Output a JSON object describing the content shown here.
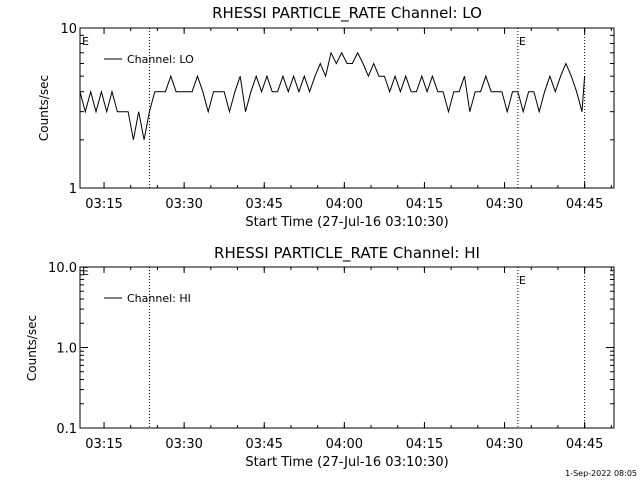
{
  "chart_data": [
    {
      "type": "line",
      "title": "RHESSI PARTICLE_RATE Channel: LO",
      "xlabel": "Start Time (27-Jul-16 03:10:30)",
      "ylabel": "Counts/sec",
      "yscale": "log",
      "ylim": [
        1,
        10
      ],
      "xlim": [
        "03:10:30",
        "04:50:30"
      ],
      "x_ticks": [
        "03:15",
        "03:30",
        "03:45",
        "04:00",
        "04:15",
        "04:30",
        "04:45"
      ],
      "y_ticks": [
        "1",
        "10"
      ],
      "legend": "top-left",
      "grid": false,
      "vertical_markers": [
        {
          "time": "03:23:30",
          "label": ""
        },
        {
          "time": "04:32:30",
          "label": "E"
        },
        {
          "time": "04:45:00",
          "label": ""
        }
      ],
      "edge_label": "E",
      "series": [
        {
          "name": "Channel: LO",
          "color": "#000000",
          "points": [
            [
              "03:10:30",
              4
            ],
            [
              "03:11:30",
              3
            ],
            [
              "03:12:30",
              4
            ],
            [
              "03:13:30",
              3
            ],
            [
              "03:14:30",
              4
            ],
            [
              "03:15:30",
              3
            ],
            [
              "03:16:30",
              4
            ],
            [
              "03:17:30",
              3
            ],
            [
              "03:18:30",
              3
            ],
            [
              "03:19:30",
              3
            ],
            [
              "03:20:30",
              2
            ],
            [
              "03:21:30",
              3
            ],
            [
              "03:22:30",
              2
            ],
            [
              "03:23:30",
              3
            ],
            [
              "03:24:30",
              4
            ],
            [
              "03:25:30",
              4
            ],
            [
              "03:26:30",
              4
            ],
            [
              "03:27:30",
              5
            ],
            [
              "03:28:30",
              4
            ],
            [
              "03:29:30",
              4
            ],
            [
              "03:30:30",
              4
            ],
            [
              "03:31:30",
              4
            ],
            [
              "03:32:30",
              5
            ],
            [
              "03:33:30",
              4
            ],
            [
              "03:34:30",
              3
            ],
            [
              "03:35:30",
              4
            ],
            [
              "03:36:30",
              4
            ],
            [
              "03:37:30",
              4
            ],
            [
              "03:38:30",
              3
            ],
            [
              "03:39:30",
              4
            ],
            [
              "03:40:30",
              5
            ],
            [
              "03:41:30",
              3
            ],
            [
              "03:42:30",
              4
            ],
            [
              "03:43:30",
              5
            ],
            [
              "03:44:30",
              4
            ],
            [
              "03:45:30",
              5
            ],
            [
              "03:46:30",
              4
            ],
            [
              "03:47:30",
              4
            ],
            [
              "03:48:30",
              5
            ],
            [
              "03:49:30",
              4
            ],
            [
              "03:50:30",
              5
            ],
            [
              "03:51:30",
              4
            ],
            [
              "03:52:30",
              5
            ],
            [
              "03:53:30",
              4
            ],
            [
              "03:54:30",
              5
            ],
            [
              "03:55:30",
              6
            ],
            [
              "03:56:30",
              5
            ],
            [
              "03:57:30",
              7
            ],
            [
              "03:58:30",
              6
            ],
            [
              "03:59:30",
              7
            ],
            [
              "04:00:30",
              6
            ],
            [
              "04:01:30",
              6
            ],
            [
              "04:02:30",
              7
            ],
            [
              "04:03:30",
              6
            ],
            [
              "04:04:30",
              5
            ],
            [
              "04:05:30",
              6
            ],
            [
              "04:06:30",
              5
            ],
            [
              "04:07:30",
              5
            ],
            [
              "04:08:30",
              4
            ],
            [
              "04:09:30",
              5
            ],
            [
              "04:10:30",
              4
            ],
            [
              "04:11:30",
              5
            ],
            [
              "04:12:30",
              4
            ],
            [
              "04:13:30",
              4
            ],
            [
              "04:14:30",
              5
            ],
            [
              "04:15:30",
              4
            ],
            [
              "04:16:30",
              5
            ],
            [
              "04:17:30",
              4
            ],
            [
              "04:18:30",
              4
            ],
            [
              "04:19:30",
              3
            ],
            [
              "04:20:30",
              4
            ],
            [
              "04:21:30",
              4
            ],
            [
              "04:22:30",
              5
            ],
            [
              "04:23:30",
              3
            ],
            [
              "04:24:30",
              4
            ],
            [
              "04:25:30",
              4
            ],
            [
              "04:26:30",
              5
            ],
            [
              "04:27:30",
              4
            ],
            [
              "04:28:30",
              4
            ],
            [
              "04:29:30",
              4
            ],
            [
              "04:30:30",
              3
            ],
            [
              "04:31:30",
              4
            ],
            [
              "04:32:30",
              4
            ],
            [
              "04:33:30",
              3
            ],
            [
              "04:34:30",
              4
            ],
            [
              "04:35:30",
              4
            ],
            [
              "04:36:30",
              3
            ],
            [
              "04:37:30",
              4
            ],
            [
              "04:38:30",
              5
            ],
            [
              "04:39:30",
              4
            ],
            [
              "04:40:30",
              5
            ],
            [
              "04:41:30",
              6
            ],
            [
              "04:42:30",
              5
            ],
            [
              "04:43:30",
              4
            ],
            [
              "04:44:30",
              3
            ],
            [
              "04:45:00",
              5
            ]
          ]
        }
      ]
    },
    {
      "type": "line",
      "title": "RHESSI PARTICLE_RATE Channel: HI",
      "xlabel": "Start Time (27-Jul-16 03:10:30)",
      "ylabel": "Counts/sec",
      "yscale": "log",
      "ylim": [
        0.1,
        10
      ],
      "xlim": [
        "03:10:30",
        "04:50:30"
      ],
      "x_ticks": [
        "03:15",
        "03:30",
        "03:45",
        "04:00",
        "04:15",
        "04:30",
        "04:45"
      ],
      "y_ticks": [
        "0.1",
        "1.0",
        "10.0"
      ],
      "legend": "top-left",
      "grid": false,
      "vertical_markers": [
        {
          "time": "03:23:30",
          "label": ""
        },
        {
          "time": "04:32:30",
          "label": "E"
        },
        {
          "time": "04:45:00",
          "label": ""
        }
      ],
      "edge_label": "E",
      "series": [
        {
          "name": "Channel: HI",
          "color": "#000000",
          "points": []
        }
      ]
    }
  ],
  "footer": {
    "timestamp": "1-Sep-2022 08:05"
  }
}
